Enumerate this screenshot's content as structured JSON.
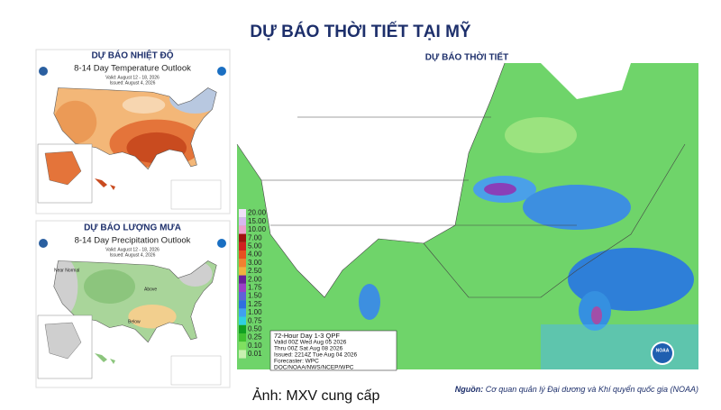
{
  "header": {
    "title": "DỰ BÁO THỜI TIẾT TẠI MỸ"
  },
  "temperature_panel": {
    "heading": "DỰ BÁO NHIỆT ĐỘ",
    "title": "8-14 Day Temperature Outlook",
    "valid": "Valid: August 12 - 18, 2026",
    "issued": "Issued: August 4, 2026"
  },
  "precipitation_panel": {
    "heading": "DỰ BÁO LƯỢNG MƯA",
    "title": "8-14 Day Precipitation Outlook",
    "valid": "Valid: August 12 - 18, 2026",
    "issued": "Issued: August 4, 2026",
    "labels": [
      "Above",
      "Below",
      "Near Normal"
    ]
  },
  "qpf_panel": {
    "heading": "DỰ BÁO THỜI TIẾT",
    "legend": [
      "20.00",
      "15.00",
      "10.00",
      "7.00",
      "5.00",
      "4.00",
      "3.00",
      "2.50",
      "2.00",
      "1.75",
      "1.50",
      "1.25",
      "1.00",
      "0.75",
      "0.50",
      "0.25",
      "0.10",
      "0.01"
    ],
    "info": [
      "72-Hour Day 1-3 QPF",
      "Valid 00Z Wed Aug 05 2026",
      "Thru 00Z Sat Aug 08 2026",
      "Issued: 2214Z Tue Aug 04 2026",
      "Forecaster: WPC",
      "DOC/NOAA/NWS/NCEP/WPC"
    ],
    "logo": "NOAA"
  },
  "footer": {
    "caption": "Ảnh: MXV cung cấp",
    "source_label": "Nguồn:",
    "source_text": "Cơ quan quản lý Đại dương và Khí quyển quốc gia (NOAA)"
  }
}
